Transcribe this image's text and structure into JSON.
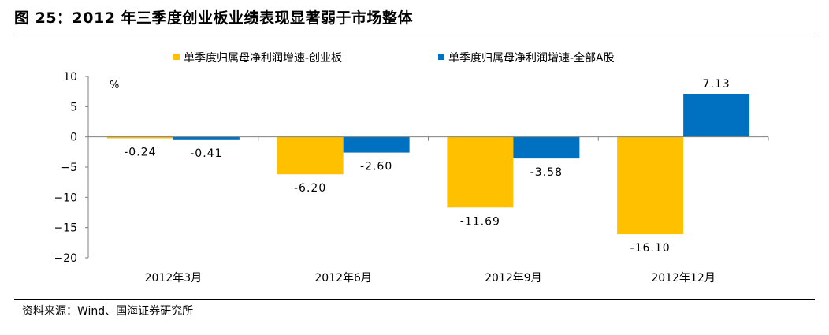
{
  "figure": {
    "title": "图 25：2012 年三季度创业板业绩表现显著弱于市场整体",
    "source": "资料来源：Wind、国海证券研究所"
  },
  "chart_data": {
    "type": "bar",
    "categories": [
      "2012年3月",
      "2012年6月",
      "2012年9月",
      "2012年12月"
    ],
    "series": [
      {
        "name": "单季度归属母净利润增速-创业板",
        "color": "#FFC000",
        "values": [
          -0.24,
          -6.2,
          -11.69,
          -16.1
        ],
        "labels": [
          "-0.24",
          "-6.20",
          "-11.69",
          "-16.10"
        ]
      },
      {
        "name": "单季度归属母净利润增速-全部A股",
        "color": "#0070C0",
        "values": [
          -0.41,
          -2.6,
          -3.58,
          7.13
        ],
        "labels": [
          "-0.41",
          "-2.60",
          "-3.58",
          "7.13"
        ]
      }
    ],
    "ylim": [
      -20,
      10
    ],
    "yticks": [
      10,
      5,
      0,
      -5,
      -10,
      -15,
      -20
    ],
    "ytick_labels": [
      "10",
      "5",
      "0",
      "−5",
      "−10",
      "−15",
      "−20"
    ],
    "yunit": "%",
    "legend_position": "top",
    "grid": false
  }
}
